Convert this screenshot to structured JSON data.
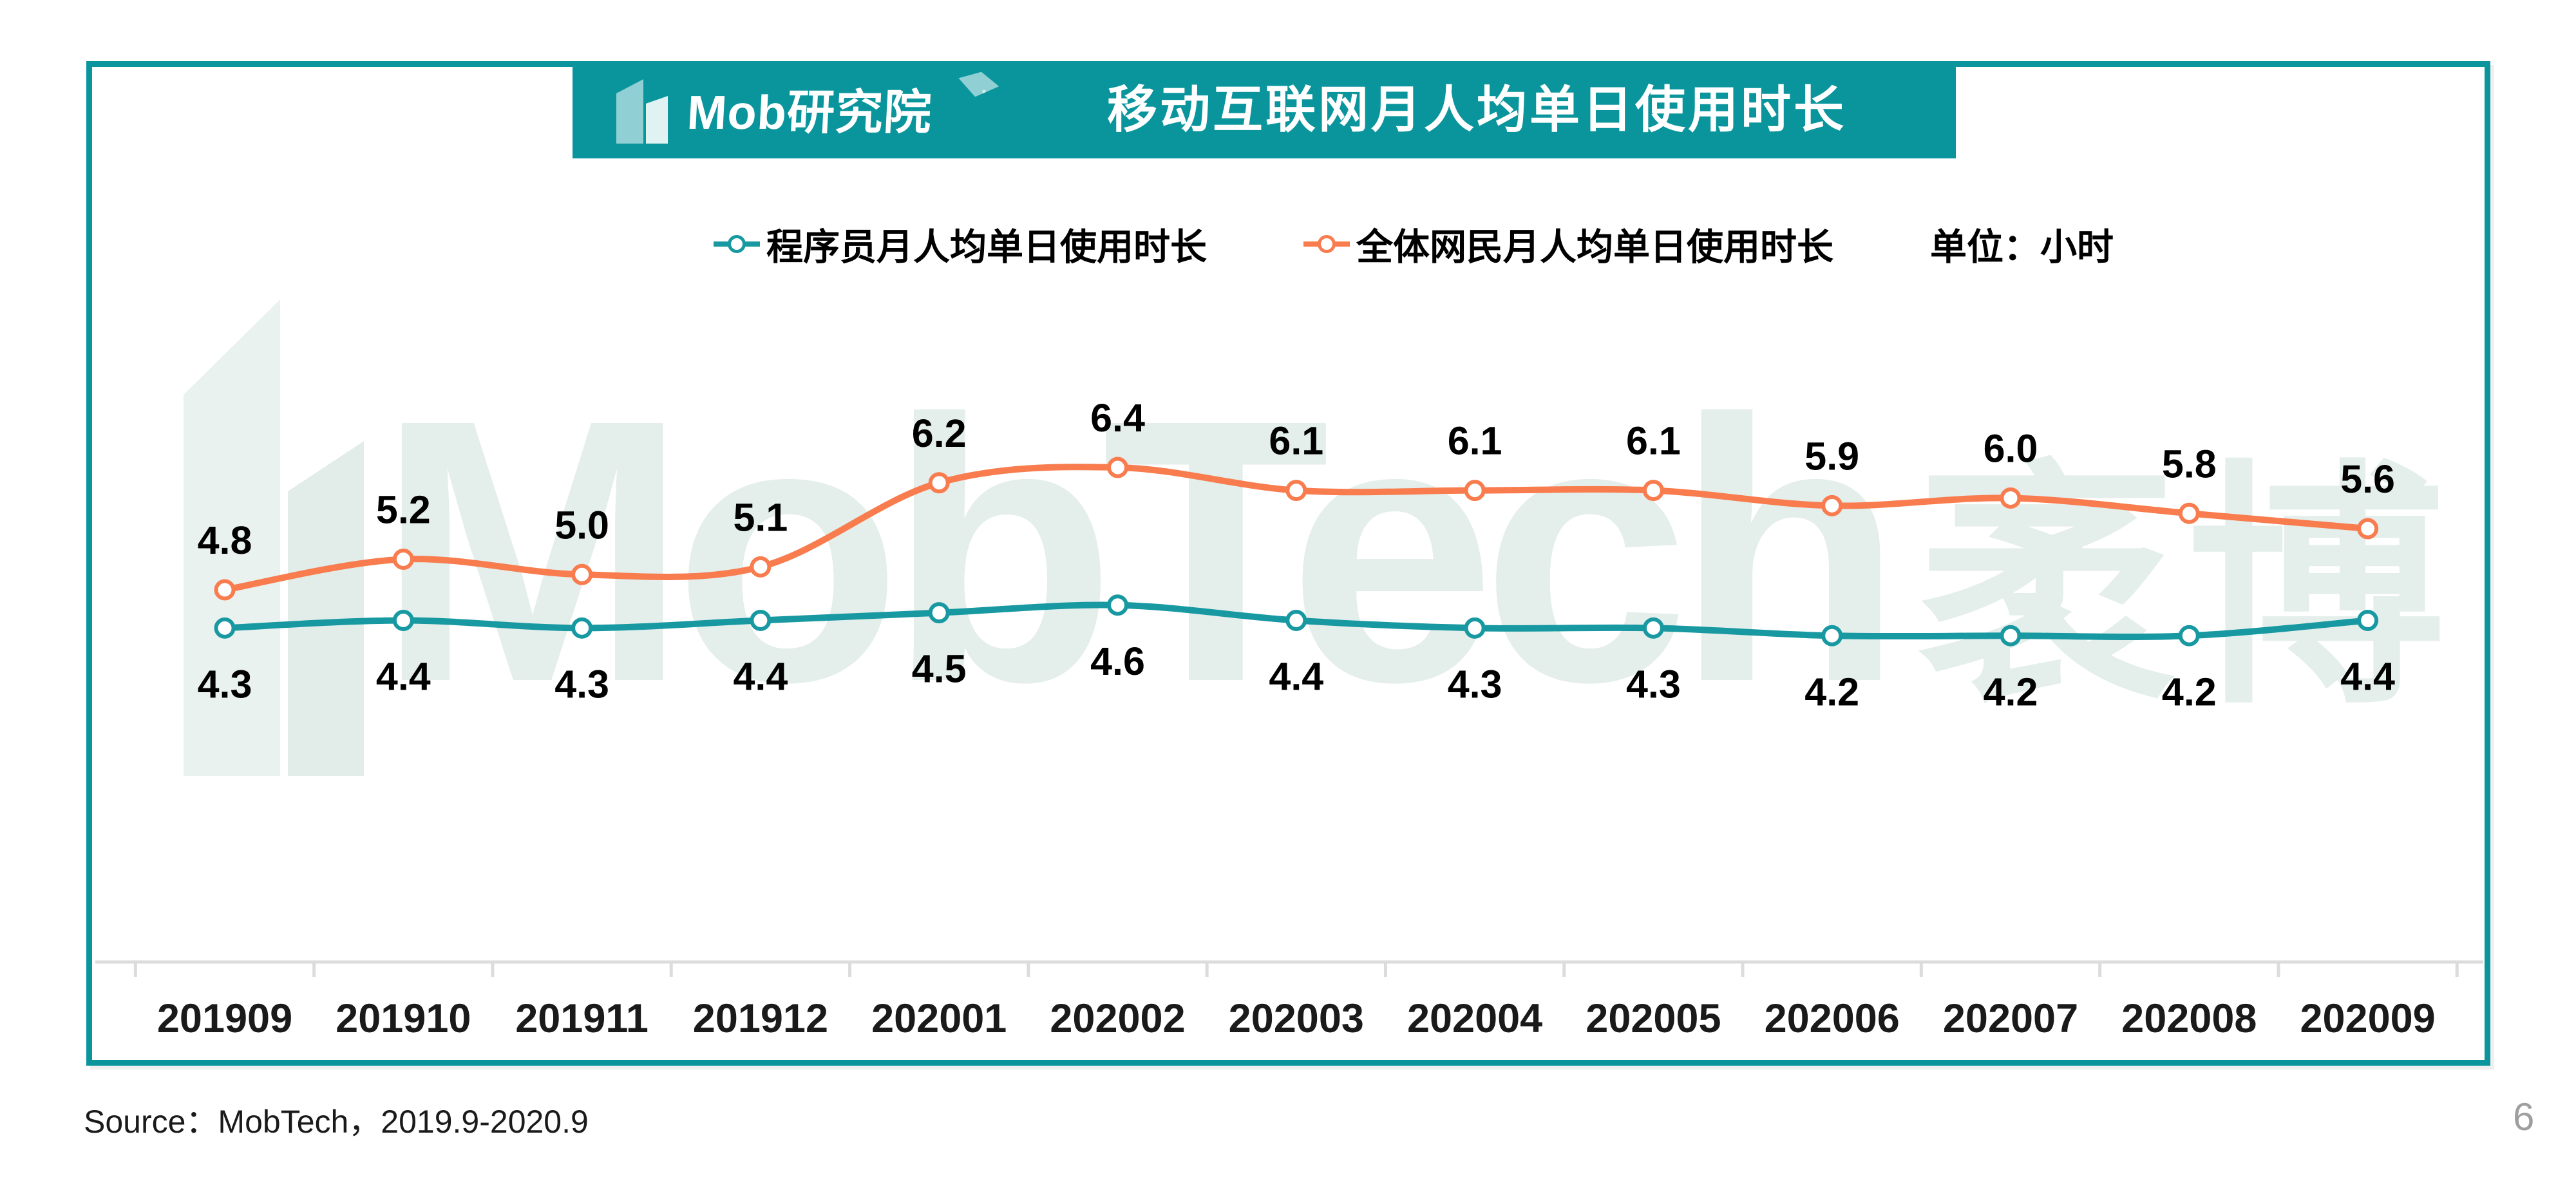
{
  "header": {
    "logo_text": "Mob研究院",
    "title": "移动互联网月人均单日使用时长",
    "banner_color": "#0A959D"
  },
  "legend": {
    "items": [
      {
        "label": "程序员月人均单日使用时长",
        "color": "#1899A2"
      },
      {
        "label": "全体网民月人均单日使用时长",
        "color": "#F87C4E"
      }
    ],
    "unit_label": "单位：小时"
  },
  "watermark": {
    "text_latin": "MobTech",
    "text_cjk": "袤博",
    "color": "#E4EEEB"
  },
  "chart_data": {
    "type": "line",
    "title": "移动互联网月人均单日使用时长",
    "unit": "小时",
    "categories": [
      "201909",
      "201910",
      "201911",
      "201912",
      "202001",
      "202002",
      "202003",
      "202004",
      "202005",
      "202006",
      "202007",
      "202008",
      "202009"
    ],
    "series": [
      {
        "name": "全体网民月人均单日使用时长",
        "color": "#F87C4E",
        "label_position": "above",
        "values": [
          4.8,
          5.2,
          5.0,
          5.1,
          6.2,
          6.4,
          6.1,
          6.1,
          6.1,
          5.9,
          6.0,
          5.8,
          5.6
        ]
      },
      {
        "name": "程序员月人均单日使用时长",
        "color": "#1899A2",
        "label_position": "below",
        "values": [
          4.3,
          4.4,
          4.3,
          4.4,
          4.5,
          4.6,
          4.4,
          4.3,
          4.3,
          4.2,
          4.2,
          4.2,
          4.4
        ]
      }
    ],
    "ylim": [
      3.0,
      7.0
    ],
    "y_axis_visible": false,
    "grid": false,
    "legend_position": "top",
    "axis_color": "#DCDCDC",
    "label_color": "#000000"
  },
  "footer": {
    "source": "Source：MobTech，2019.9-2020.9",
    "page_number": "6"
  }
}
